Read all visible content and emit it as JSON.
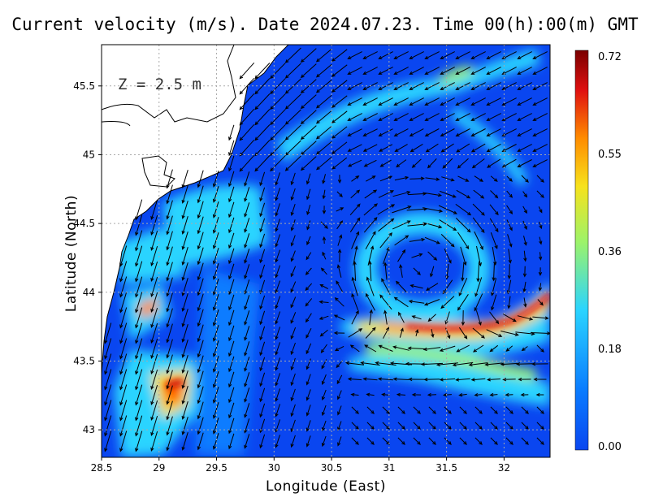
{
  "title": "Current velocity (m/s). Date 2024.07.23. Time 00(h):00(m) GMT",
  "depth_label": "Z = 2.5 m",
  "xlabel": "Longitude (East)",
  "ylabel": "Latitude (North)",
  "map": {
    "lon_range": [
      28.5,
      32.4
    ],
    "lat_range": [
      42.8,
      45.8
    ],
    "x_ticks": [
      "28.5",
      "29",
      "29.5",
      "30",
      "30.5",
      "31",
      "31.5",
      "32"
    ],
    "y_ticks": [
      "43",
      "43.5",
      "44",
      "44.5",
      "45",
      "45.5"
    ],
    "grid": "dotted",
    "land_color": "#ffffff",
    "coast_color": "#000000"
  },
  "colorbar": {
    "labels": [
      "0.72",
      "0.55",
      "0.36",
      "0.18",
      "0.00"
    ],
    "min": 0.0,
    "max": 0.72,
    "colors": [
      "#0a46f0",
      "#0a7cff",
      "#2ad4ff",
      "#9cf36a",
      "#f7e21c",
      "#ff8c00",
      "#e01010",
      "#7a0000"
    ]
  },
  "fields": {
    "eddy_center": [
      31.25,
      44.2
    ],
    "strong_jets": [
      "front south of eddy (≈43.6–43.8 N, 30.7–32.4 E)",
      "south-west shelf (≈43.3 N, 29.2 E)"
    ]
  }
}
